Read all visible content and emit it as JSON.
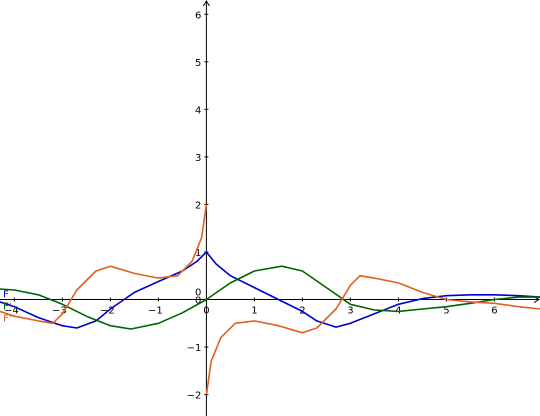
{
  "chart_data": {
    "type": "line",
    "title": "",
    "xlabel": "",
    "ylabel": "",
    "xlim": [
      -4.3,
      6.95
    ],
    "ylim": [
      -2.45,
      6.3
    ],
    "x_ticks": [
      -4,
      -3,
      -2,
      -1,
      0,
      1,
      2,
      3,
      4,
      5,
      6
    ],
    "y_ticks": [
      -2,
      -1,
      0,
      1,
      2,
      3,
      4,
      5,
      6
    ],
    "origin_label": "0",
    "grid": false,
    "series": [
      {
        "name": "F",
        "color": "#0000cc",
        "points": [
          [
            -4.3,
            -0.05
          ],
          [
            -4.0,
            -0.15
          ],
          [
            -3.5,
            -0.38
          ],
          [
            -3.0,
            -0.55
          ],
          [
            -2.7,
            -0.6
          ],
          [
            -2.3,
            -0.45
          ],
          [
            -2.0,
            -0.2
          ],
          [
            -1.5,
            0.15
          ],
          [
            -1.0,
            0.38
          ],
          [
            -0.5,
            0.6
          ],
          [
            -0.2,
            0.8
          ],
          [
            0.0,
            1.0
          ],
          [
            0.2,
            0.75
          ],
          [
            0.5,
            0.5
          ],
          [
            1.0,
            0.25
          ],
          [
            1.5,
            0.0
          ],
          [
            2.0,
            -0.25
          ],
          [
            2.3,
            -0.45
          ],
          [
            2.7,
            -0.58
          ],
          [
            3.0,
            -0.5
          ],
          [
            3.5,
            -0.3
          ],
          [
            4.0,
            -0.1
          ],
          [
            4.5,
            0.02
          ],
          [
            5.0,
            0.08
          ],
          [
            5.5,
            0.1
          ],
          [
            6.0,
            0.1
          ],
          [
            6.5,
            0.08
          ],
          [
            6.95,
            0.05
          ]
        ]
      },
      {
        "name": "F'",
        "color": "#006600",
        "points": [
          [
            -4.3,
            0.22
          ],
          [
            -4.0,
            0.2
          ],
          [
            -3.5,
            0.1
          ],
          [
            -3.0,
            -0.1
          ],
          [
            -2.5,
            -0.35
          ],
          [
            -2.0,
            -0.55
          ],
          [
            -1.57,
            -0.62
          ],
          [
            -1.0,
            -0.5
          ],
          [
            -0.5,
            -0.28
          ],
          [
            0.0,
            0.0
          ],
          [
            0.5,
            0.35
          ],
          [
            1.0,
            0.6
          ],
          [
            1.57,
            0.7
          ],
          [
            2.0,
            0.6
          ],
          [
            2.5,
            0.25
          ],
          [
            3.0,
            -0.1
          ],
          [
            3.5,
            -0.22
          ],
          [
            4.0,
            -0.25
          ],
          [
            4.5,
            -0.2
          ],
          [
            5.0,
            -0.15
          ],
          [
            5.5,
            -0.08
          ],
          [
            6.0,
            0.0
          ],
          [
            6.5,
            0.05
          ],
          [
            6.95,
            0.05
          ]
        ]
      },
      {
        "name": "F''",
        "color": "#e06020",
        "points": [
          [
            -4.3,
            -0.25
          ],
          [
            -4.0,
            -0.35
          ],
          [
            -3.5,
            -0.45
          ],
          [
            -3.2,
            -0.5
          ],
          [
            -3.0,
            -0.3
          ],
          [
            -2.7,
            0.2
          ],
          [
            -2.3,
            0.6
          ],
          [
            -2.0,
            0.7
          ],
          [
            -1.5,
            0.55
          ],
          [
            -1.0,
            0.45
          ],
          [
            -0.6,
            0.5
          ],
          [
            -0.3,
            0.8
          ],
          [
            -0.1,
            1.3
          ],
          [
            0.0,
            2.0
          ],
          [
            0.0,
            -2.0
          ],
          [
            0.1,
            -1.3
          ],
          [
            0.3,
            -0.8
          ],
          [
            0.6,
            -0.5
          ],
          [
            1.0,
            -0.45
          ],
          [
            1.5,
            -0.55
          ],
          [
            2.0,
            -0.7
          ],
          [
            2.3,
            -0.6
          ],
          [
            2.7,
            -0.2
          ],
          [
            3.0,
            0.3
          ],
          [
            3.2,
            0.5
          ],
          [
            3.5,
            0.45
          ],
          [
            4.0,
            0.35
          ],
          [
            4.5,
            0.15
          ],
          [
            5.0,
            0.0
          ],
          [
            5.5,
            -0.05
          ],
          [
            6.0,
            -0.08
          ],
          [
            6.5,
            -0.15
          ],
          [
            6.95,
            -0.2
          ]
        ]
      }
    ]
  }
}
